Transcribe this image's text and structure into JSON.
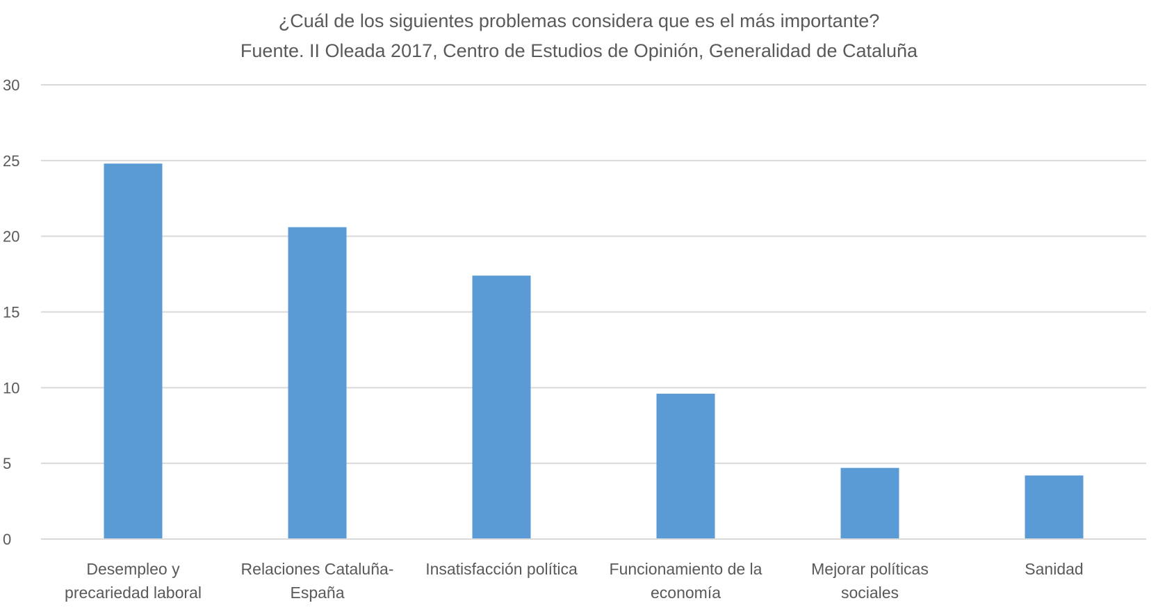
{
  "chart_data": {
    "type": "bar",
    "title": "¿Cuál de los siguientes problemas considera que es el más importante?",
    "subtitle": "Fuente. II Oleada 2017, Centro de Estudios de Opinión, Generalidad de Cataluña",
    "categories": [
      [
        "Desempleo y",
        "precariedad laboral"
      ],
      [
        "Relaciones Cataluña-",
        "España"
      ],
      [
        "Insatisfacción política"
      ],
      [
        "Funcionamiento de la",
        "economía"
      ],
      [
        "Mejorar políticas",
        "sociales"
      ],
      [
        "Sanidad"
      ]
    ],
    "values": [
      24.8,
      20.6,
      17.4,
      9.6,
      4.7,
      4.2
    ],
    "ylim": [
      0,
      30
    ],
    "yticks": [
      0,
      5,
      10,
      15,
      20,
      25,
      30
    ],
    "grid": true,
    "legend": "none",
    "colors": {
      "bar": "#5B9BD5",
      "grid": "#D9D9D9",
      "text": "#595959"
    }
  }
}
